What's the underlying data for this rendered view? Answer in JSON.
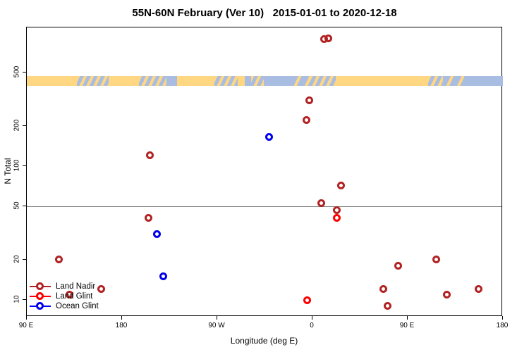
{
  "title": "55N-60N February (Ver 10)   2015-01-01 to 2020-12-18",
  "axes": {
    "x_label": "Longitude (deg E)",
    "y_label": "N Total"
  },
  "legend": {
    "items": [
      {
        "label": "Land Nadir",
        "color": "#B22222"
      },
      {
        "label": "Land Glint",
        "color": "#FF0000"
      },
      {
        "label": "Ocean Glint",
        "color": "#0000EE"
      }
    ]
  },
  "reference_line": {
    "value": 50,
    "color": "#808080"
  },
  "map_strip": {
    "land_color": "#FFD782",
    "ocean_color": "#A9BCE2",
    "segments": [
      {
        "from_lon": 90,
        "to_lon": 137,
        "type": "land"
      },
      {
        "from_lon": 137,
        "to_lon": 167,
        "type": "mix"
      },
      {
        "from_lon": 167,
        "to_lon": 196,
        "type": "land"
      },
      {
        "from_lon": 196,
        "to_lon": 222,
        "type": "mix"
      },
      {
        "from_lon": 222,
        "to_lon": 232,
        "type": "ocean"
      },
      {
        "from_lon": 232,
        "to_lon": 267,
        "type": "land"
      },
      {
        "from_lon": 267,
        "to_lon": 289,
        "type": "mix"
      },
      {
        "from_lon": 289,
        "to_lon": 296,
        "type": "land"
      },
      {
        "from_lon": 296,
        "to_lon": 302,
        "type": "ocean"
      },
      {
        "from_lon": 302,
        "to_lon": 314,
        "type": "mix"
      },
      {
        "from_lon": 314,
        "to_lon": 339,
        "type": "ocean"
      },
      {
        "from_lon": 339,
        "to_lon": 357,
        "type": "mix2"
      },
      {
        "from_lon": 357,
        "to_lon": 382,
        "type": "mix"
      },
      {
        "from_lon": 382,
        "to_lon": 469,
        "type": "land"
      },
      {
        "from_lon": 469,
        "to_lon": 483,
        "type": "mix"
      },
      {
        "from_lon": 483,
        "to_lon": 503,
        "type": "mix2"
      },
      {
        "from_lon": 503,
        "to_lon": 540,
        "type": "ocean"
      }
    ]
  },
  "chart_data": {
    "type": "scatter",
    "title": "55N-60N February (Ver 10)   2015-01-01 to 2020-12-18",
    "xlabel": "Longitude (deg E)",
    "ylabel": "N Total",
    "x_axis": {
      "note": "longitude axis starts at 90E and wraps eastward through 180, 90W, 0, 90E to 180",
      "ticks": [
        {
          "axis_lon": 90,
          "label": "90 E"
        },
        {
          "axis_lon": 180,
          "label": "180"
        },
        {
          "axis_lon": 270,
          "label": "90 W"
        },
        {
          "axis_lon": 360,
          "label": "0"
        },
        {
          "axis_lon": 450,
          "label": "90 E"
        },
        {
          "axis_lon": 540,
          "label": "180"
        }
      ]
    },
    "y_axis": {
      "scale": "log",
      "ticks": [
        10,
        20,
        50,
        100,
        200,
        500
      ],
      "range": [
        7,
        1100
      ]
    },
    "grid": "off",
    "legend_position": "bottom-left",
    "series": [
      {
        "name": "Land Nadir",
        "color": "#B22222",
        "points": [
          {
            "axis_lon": 120,
            "n": 20
          },
          {
            "axis_lon": 130,
            "n": 11
          },
          {
            "axis_lon": 160,
            "n": 12
          },
          {
            "axis_lon": 206,
            "n": 120
          },
          {
            "axis_lon": 205,
            "n": 41
          },
          {
            "axis_lon": 354,
            "n": 220
          },
          {
            "axis_lon": 357,
            "n": 310
          },
          {
            "axis_lon": 371,
            "n": 890
          },
          {
            "axis_lon": 375,
            "n": 905
          },
          {
            "axis_lon": 368,
            "n": 53
          },
          {
            "axis_lon": 383,
            "n": 47
          },
          {
            "axis_lon": 387,
            "n": 72
          },
          {
            "axis_lon": 427,
            "n": 12
          },
          {
            "axis_lon": 431,
            "n": 9
          },
          {
            "axis_lon": 441,
            "n": 18
          },
          {
            "axis_lon": 477,
            "n": 20
          },
          {
            "axis_lon": 487,
            "n": 11
          },
          {
            "axis_lon": 517,
            "n": 12
          }
        ]
      },
      {
        "name": "Land Glint",
        "color": "#FF0000",
        "points": [
          {
            "axis_lon": 355,
            "n": 10
          },
          {
            "axis_lon": 383,
            "n": 41
          }
        ]
      },
      {
        "name": "Ocean Glint",
        "color": "#0000EE",
        "points": [
          {
            "axis_lon": 213,
            "n": 31
          },
          {
            "axis_lon": 219,
            "n": 15
          },
          {
            "axis_lon": 319,
            "n": 165
          }
        ]
      }
    ]
  }
}
